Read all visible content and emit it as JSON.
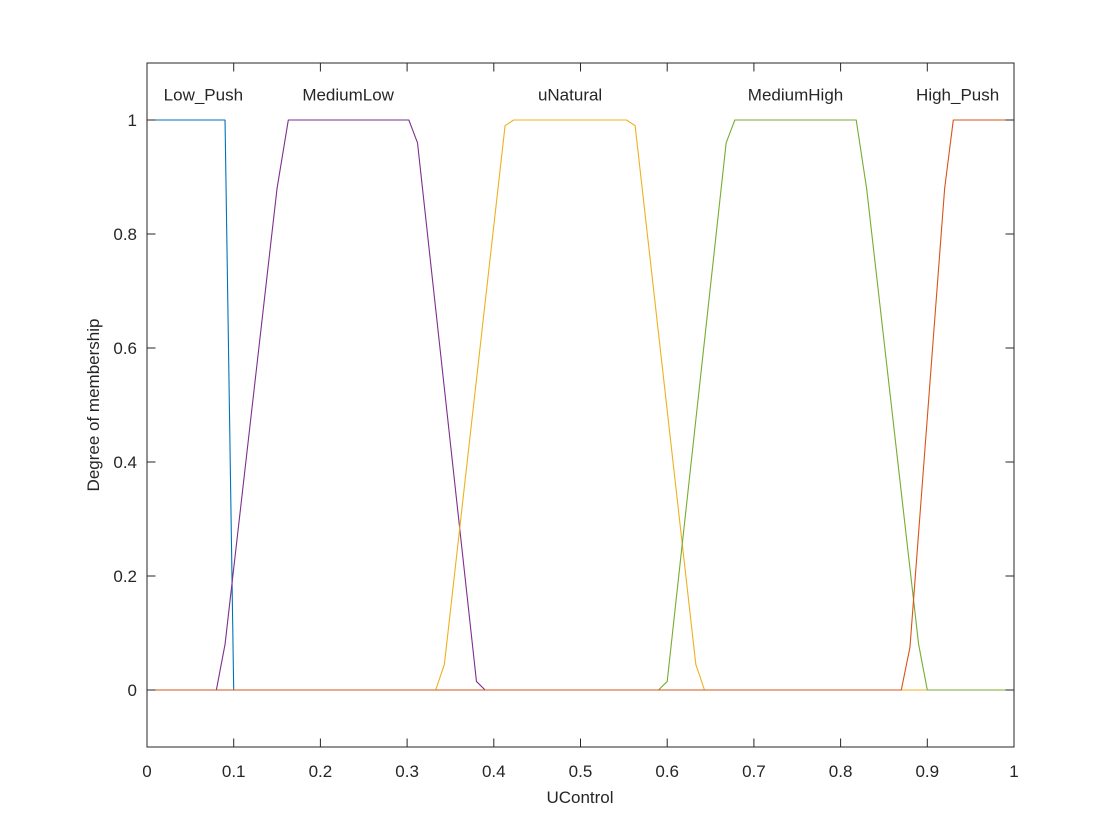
{
  "chart_data": {
    "type": "line",
    "title": "",
    "xlabel": "UControl",
    "ylabel": "Degree of membership",
    "xlim": [
      0,
      1
    ],
    "ylim": [
      -0.1,
      1.1
    ],
    "xticks": [
      0,
      0.1,
      0.2,
      0.3,
      0.4,
      0.5,
      0.6,
      0.7,
      0.8,
      0.9,
      1
    ],
    "xtick_labels": [
      "0",
      "0.1",
      "0.2",
      "0.3",
      "0.4",
      "0.5",
      "0.6",
      "0.7",
      "0.8",
      "0.9",
      "1"
    ],
    "yticks": [
      0,
      0.2,
      0.4,
      0.6,
      0.8,
      1
    ],
    "ytick_labels": [
      "0",
      "0.2",
      "0.4",
      "0.6",
      "0.8",
      "1"
    ],
    "grid": false,
    "legend": "none",
    "series": [
      {
        "name": "Low_Push",
        "color": "#0072BD",
        "points": [
          [
            0,
            1
          ],
          [
            0.09,
            1
          ],
          [
            0.1,
            0
          ],
          [
            1,
            0
          ]
        ]
      },
      {
        "name": "MediumLow",
        "color": "#7E2F8E",
        "points": [
          [
            0,
            0
          ],
          [
            0.08,
            0
          ],
          [
            0.09,
            0.08
          ],
          [
            0.15,
            0.88
          ],
          [
            0.163,
            1
          ],
          [
            0.302,
            1
          ],
          [
            0.312,
            0.96
          ],
          [
            0.38,
            0.015
          ],
          [
            0.39,
            0
          ],
          [
            1,
            0
          ]
        ]
      },
      {
        "name": "uNatural",
        "color": "#EDB120",
        "points": [
          [
            0,
            0
          ],
          [
            0.333,
            0
          ],
          [
            0.343,
            0.045
          ],
          [
            0.413,
            0.99
          ],
          [
            0.423,
            1
          ],
          [
            0.553,
            1
          ],
          [
            0.563,
            0.99
          ],
          [
            0.633,
            0.045
          ],
          [
            0.643,
            0
          ],
          [
            1,
            0
          ]
        ]
      },
      {
        "name": "MediumHigh",
        "color": "#77AC30",
        "points": [
          [
            0,
            0
          ],
          [
            0.59,
            0
          ],
          [
            0.6,
            0.015
          ],
          [
            0.668,
            0.96
          ],
          [
            0.678,
            1
          ],
          [
            0.818,
            1
          ],
          [
            0.83,
            0.88
          ],
          [
            0.89,
            0.08
          ],
          [
            0.9,
            0
          ],
          [
            1,
            0
          ]
        ]
      },
      {
        "name": "High_Push",
        "color": "#D95319",
        "points": [
          [
            0,
            0
          ],
          [
            0.87,
            0
          ],
          [
            0.88,
            0.075
          ],
          [
            0.92,
            0.88
          ],
          [
            0.93,
            1
          ],
          [
            1,
            1
          ]
        ]
      }
    ],
    "annotations": [
      {
        "text": "Low_Push",
        "x": 0.065,
        "y": 1.045
      },
      {
        "text": "MediumLow",
        "x": 0.232,
        "y": 1.045
      },
      {
        "text": "uNatural",
        "x": 0.488,
        "y": 1.045
      },
      {
        "text": "MediumHigh",
        "x": 0.748,
        "y": 1.045
      },
      {
        "text": "High_Push",
        "x": 0.935,
        "y": 1.045
      }
    ]
  }
}
